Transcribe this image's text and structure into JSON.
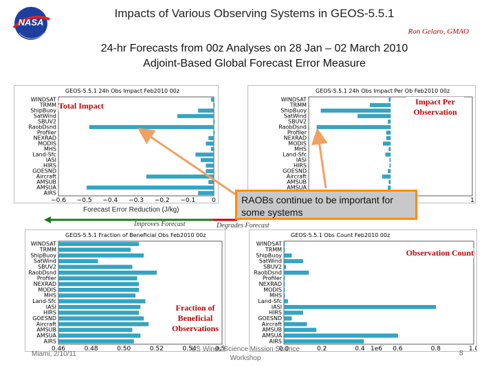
{
  "title": "Impacts of Various Observing Systems in GEOS-5.5.1",
  "author": "Ron Gelaro, GMAO",
  "subtitle_line1": "24-hr Forecasts from 00z Analyses on 28 Jan – 02 March 2010",
  "subtitle_line2": "Adjoint-Based Global Forecast Error Measure",
  "logo_text": "NASA",
  "callout": "RAOBs continue to be important for some systems",
  "legend": {
    "xlabel": "Forecast Error Reduction (J/kg)",
    "improves": "Improves Forecast",
    "degrades": "Degrades Forecast"
  },
  "footer": {
    "left": "Miami, 2/10/11",
    "center": "US Winds Science Mission Science Workshop",
    "page": "8"
  },
  "colors": {
    "bar": "#31a6c6",
    "arrow": "#f0a060",
    "callout_border": "#ff8c00",
    "red": "#c00000",
    "green": "#1a7a1a"
  },
  "chart_data": [
    {
      "type": "bar",
      "orientation": "horizontal",
      "title": "GEOS-5.5.1 24h Obs Impact Feb2010 00z",
      "annotation": "Total Impact",
      "categories": [
        "WINDSAT",
        "TRMM",
        "ShipBuoy",
        "SatWind",
        "SBUV2",
        "RaobDsnd",
        "Profiler",
        "NEXRAD",
        "MODIS",
        "MHS",
        "Land-Sfc",
        "IASI",
        "HIRS",
        "GOESND",
        "Aircraft",
        "AMSUB",
        "AMSUA",
        "AIRS"
      ],
      "values": [
        -0.01,
        0.0,
        -0.06,
        -0.14,
        0.0,
        -0.48,
        0.0,
        -0.02,
        -0.03,
        -0.01,
        -0.07,
        -0.05,
        -0.03,
        -0.03,
        -0.26,
        -0.02,
        -0.49,
        -0.06
      ],
      "xlim": [
        -0.6,
        0.0
      ],
      "xticks": [
        "−0.6",
        "−0.5",
        "−0.4",
        "−0.3",
        "−0.2",
        "−0.1",
        "0"
      ]
    },
    {
      "type": "bar",
      "orientation": "horizontal",
      "title": "GEOS-5.5.1 24h Obs Impact Per Ob Feb2010 00z",
      "annotation": "Impact Per Observation",
      "categories": [
        "WINDSAT",
        "TRMM",
        "ShipBuoy",
        "SatWind",
        "SBUV2",
        "RaobDsnd",
        "Profiler",
        "NEXRAD",
        "MODIS",
        "MHS",
        "Land-Sfc",
        "IASI",
        "HIRS",
        "GOESND",
        "Aircraft",
        "AMSUB",
        "AMSUA",
        "AIRS"
      ],
      "values": [
        -0.02,
        -0.25,
        -0.85,
        -0.4,
        -0.03,
        -0.9,
        -0.05,
        -0.05,
        -0.09,
        -0.02,
        -0.06,
        -0.01,
        -0.01,
        -0.03,
        -0.1,
        -0.02,
        -0.03,
        -0.01
      ],
      "xlim": [
        -1,
        1
      ],
      "xticks": [
        "1"
      ]
    },
    {
      "type": "bar",
      "orientation": "horizontal",
      "title": "GEOS-5.5.1 Fraction of Beneficial Obs Feb2010 00z",
      "annotation": "Fraction of Beneficial Observations",
      "categories": [
        "WINDSAT",
        "TRMM",
        "ShipBuoy",
        "SatWind",
        "SBUV2",
        "RaobDsnd",
        "Profiler",
        "NEXRAD",
        "MODIS",
        "MHS",
        "Land-Sfc",
        "IASI",
        "HIRS",
        "GOESND",
        "Aircraft",
        "AMSUB",
        "AMSUA",
        "AIRS"
      ],
      "values": [
        0.509,
        0.504,
        0.512,
        0.484,
        0.505,
        0.52,
        0.508,
        0.509,
        0.509,
        0.507,
        0.513,
        0.51,
        0.509,
        0.512,
        0.515,
        0.505,
        0.51,
        0.506
      ],
      "xlim": [
        0.46,
        0.56
      ],
      "xticks": [
        "0.46",
        "0.48",
        "0.50",
        "0.52",
        "0.54",
        "0.56"
      ]
    },
    {
      "type": "bar",
      "orientation": "horizontal",
      "title": "GEOS-5.5.1 Obs Count Feb2010 00z",
      "annotation": "Observation Count",
      "categories": [
        "WINDSAT",
        "TRMM",
        "ShipBuoy",
        "SatWind",
        "SBUV2",
        "RaobDsnd",
        "Profiler",
        "NEXRAD",
        "MODIS",
        "MHS",
        "Land-Sfc",
        "IASI",
        "HIRS",
        "GOESND",
        "Aircraft",
        "AMSUB",
        "AMSUA",
        "AIRS"
      ],
      "values": [
        0.0,
        0.0,
        0.04,
        0.1,
        0.01,
        0.13,
        0.0,
        0.0,
        0.0,
        0.0,
        0.02,
        0.8,
        0.1,
        0.04,
        0.12,
        0.17,
        0.6,
        0.42
      ],
      "xlim": [
        0.0,
        1.0
      ],
      "xticks": [
        "0.0",
        "0.2",
        "0.4",
        "0.6",
        "0.8",
        "1.0"
      ],
      "xunit": "1e6"
    }
  ]
}
